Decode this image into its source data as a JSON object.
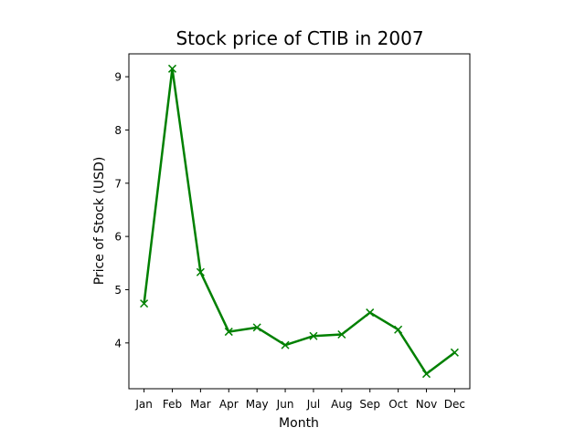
{
  "chart_data": {
    "type": "line",
    "title": "Stock price of CTIB in 2007",
    "xlabel": "Month",
    "ylabel": "Price of Stock (USD)",
    "categories": [
      "Jan",
      "Feb",
      "Mar",
      "Apr",
      "May",
      "Jun",
      "Jul",
      "Aug",
      "Sep",
      "Oct",
      "Nov",
      "Dec"
    ],
    "series": [
      {
        "values": [
          4.74,
          9.15,
          5.33,
          4.21,
          4.29,
          3.96,
          4.13,
          4.16,
          4.57,
          4.25,
          3.42,
          3.82
        ],
        "color": "#008000",
        "marker": "x"
      }
    ],
    "ylim": [
      3.14,
      9.43
    ],
    "yticks": [
      4,
      5,
      6,
      7,
      8,
      9
    ],
    "grid": false
  }
}
